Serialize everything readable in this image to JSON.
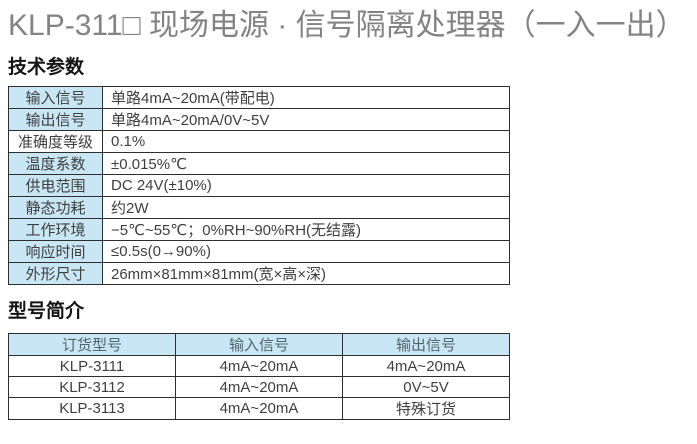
{
  "page": {
    "title": "KLP-311□ 现场电源 · 信号隔离处理器（一入一出）",
    "colors": {
      "title_gray": "#838383",
      "cell_blue": "#c9e6f4",
      "border_dark": "#2e2e2e",
      "body_text": "#3f3f3f"
    }
  },
  "tech_section": {
    "heading": "技术参数",
    "rows": [
      {
        "label": "输入信号",
        "value": "单路4mA~20mA(带配电)"
      },
      {
        "label": "输出信号",
        "value": "单路4mA~20mA/0V~5V"
      },
      {
        "label": "准确度等级",
        "value": "0.1%"
      },
      {
        "label": "温度系数",
        "value": "±0.015%℃"
      },
      {
        "label": "供电范围",
        "value": "DC 24V(±10%)"
      },
      {
        "label": "静态功耗",
        "value": "约2W"
      },
      {
        "label": "工作环境",
        "value": "−5℃~55℃；0%RH~90%RH(无结露)"
      },
      {
        "label": "响应时间",
        "value": "≤0.5s(0→90%)"
      },
      {
        "label": "外形尺寸",
        "value": "26mm×81mm×81mm(宽×高×深)"
      }
    ]
  },
  "model_section": {
    "heading": "型号简介",
    "headers": [
      "订货型号",
      "输入信号",
      "输出信号"
    ],
    "rows": [
      [
        "KLP-3111",
        "4mA~20mA",
        "4mA~20mA"
      ],
      [
        "KLP-3112",
        "4mA~20mA",
        "0V~5V"
      ],
      [
        "KLP-3113",
        "4mA~20mA",
        "特殊订货"
      ]
    ]
  }
}
